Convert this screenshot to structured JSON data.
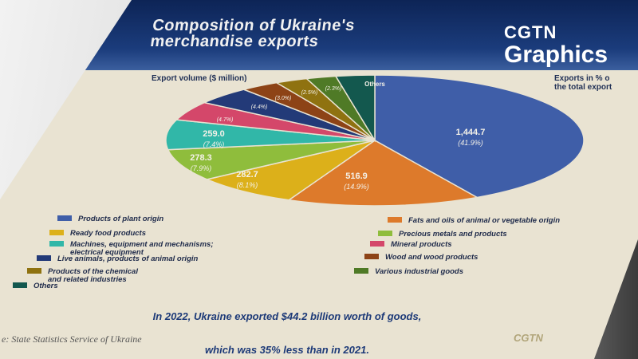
{
  "header": {
    "title": "Composition of Ukraine's\nmerchandise exports",
    "brand_top": "CGTN",
    "brand_bottom": "Graphics"
  },
  "labels": {
    "left": "Export volume ($ million)",
    "right": "Exports in % o\nthe total export"
  },
  "colors": {
    "plant": "#3f5ea8",
    "fats": "#dd7a2b",
    "ready": "#dcb01a",
    "precious": "#8fbd3c",
    "machines": "#31b7a8",
    "mineral": "#d4476a",
    "live": "#233a78",
    "wood": "#8d4316",
    "chemical": "#8f7210",
    "various": "#4f7a26",
    "others": "#13584e"
  },
  "chart_data": {
    "type": "pie",
    "title": "Composition of Ukraine's merchandise exports",
    "unit": "$ million",
    "slices": [
      {
        "key": "plant",
        "name": "Products of plant origin",
        "value": "1,444.7",
        "pct": "(41.9%)",
        "share": 41.9
      },
      {
        "key": "fats",
        "name": "Fats and oils of animal or vegetable origin",
        "value": "516.9",
        "pct": "(14.9%)",
        "share": 14.9
      },
      {
        "key": "ready",
        "name": "Ready food products",
        "value": "282.7",
        "pct": "(8.1%)",
        "share": 8.1
      },
      {
        "key": "precious",
        "name": "Precious metals and products",
        "value": "278.3",
        "pct": "(7.9%)",
        "share": 7.9
      },
      {
        "key": "machines",
        "name": "Machines, equipment and mechanisms;\nelectrical equipment",
        "value": "259.0",
        "pct": "(7.4%)",
        "share": 7.4
      },
      {
        "key": "mineral",
        "name": "Mineral products",
        "value": "",
        "pct": "(4.7%)",
        "share": 4.7
      },
      {
        "key": "live",
        "name": "Live animals, products of animal origin",
        "value": "",
        "pct": "(4.4%)",
        "share": 4.4
      },
      {
        "key": "wood",
        "name": "Wood and wood products",
        "value": "",
        "pct": "(3.0%)",
        "share": 3.0
      },
      {
        "key": "chemical",
        "name": "Products of the chemical\nand related industries",
        "value": "",
        "pct": "(2.5%)",
        "share": 2.5
      },
      {
        "key": "various",
        "name": "Various industrial goods",
        "value": "",
        "pct": "(2.3%)",
        "share": 2.3
      },
      {
        "key": "others",
        "name": "Others",
        "value": "Others",
        "pct": "",
        "share": 3.0
      }
    ]
  },
  "summary": {
    "line1": "In 2022, Ukraine exported $44.2 billion worth of goods,",
    "line2": "which was 35% less than in 2021."
  },
  "source": "e: State Statistics Service of Ukraine",
  "footer_brand": "CGTN"
}
